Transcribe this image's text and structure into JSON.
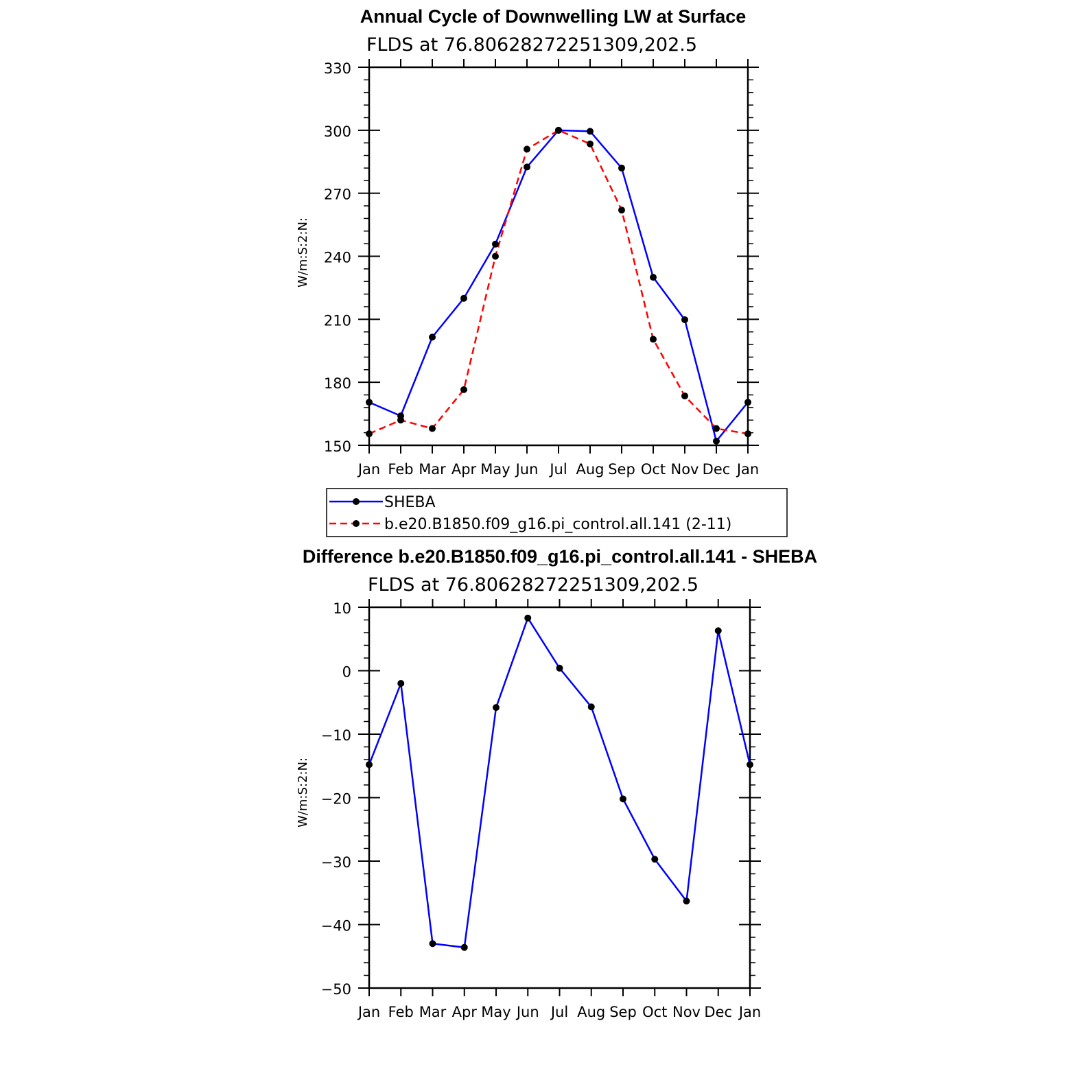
{
  "chart_data": [
    {
      "type": "line",
      "title": "Annual Cycle of Downwelling LW at Surface",
      "subtitle": "FLDS at 76.80628272251309,202.5",
      "ylabel": "W/m:S:2:N:",
      "xlabel": "",
      "categories": [
        "Jan",
        "Feb",
        "Mar",
        "Apr",
        "May",
        "Jun",
        "Jul",
        "Aug",
        "Sep",
        "Oct",
        "Nov",
        "Dec",
        "Jan"
      ],
      "ylim": [
        150,
        330
      ],
      "yticks": [
        150,
        180,
        210,
        240,
        270,
        300,
        330
      ],
      "series": [
        {
          "name": "SHEBA",
          "color": "#0000ff",
          "dash": "solid",
          "values": [
            170.5,
            164,
            201.5,
            220,
            245.8,
            282.5,
            300,
            299.5,
            282,
            230,
            209.8,
            152,
            170.5
          ]
        },
        {
          "name": "b.e20.B1850.f09_g16.pi_control.all.141 (2-11)",
          "color": "#ff0000",
          "dash": "dashed",
          "values": [
            155.5,
            162,
            158,
            176.5,
            240,
            291,
            300,
            293.5,
            262,
            200.5,
            173.5,
            158,
            155.5
          ]
        }
      ],
      "legend_position": "bottom"
    },
    {
      "type": "line",
      "title": "Difference b.e20.B1850.f09_g16.pi_control.all.141 - SHEBA",
      "subtitle": "FLDS at 76.80628272251309,202.5",
      "ylabel": "W/m:S:2:N:",
      "xlabel": "",
      "categories": [
        "Jan",
        "Feb",
        "Mar",
        "Apr",
        "May",
        "Jun",
        "Jul",
        "Aug",
        "Sep",
        "Oct",
        "Nov",
        "Dec",
        "Jan"
      ],
      "ylim": [
        -50,
        10
      ],
      "yticks": [
        -50,
        -40,
        -30,
        -20,
        -10,
        0,
        10
      ],
      "series": [
        {
          "color": "#0000ff",
          "dash": "solid",
          "values": [
            -14.8,
            -2,
            -43,
            -43.6,
            -5.8,
            8.3,
            0.4,
            -5.7,
            -20.2,
            -29.7,
            -36.3,
            6.3,
            -14.8
          ]
        }
      ]
    }
  ]
}
